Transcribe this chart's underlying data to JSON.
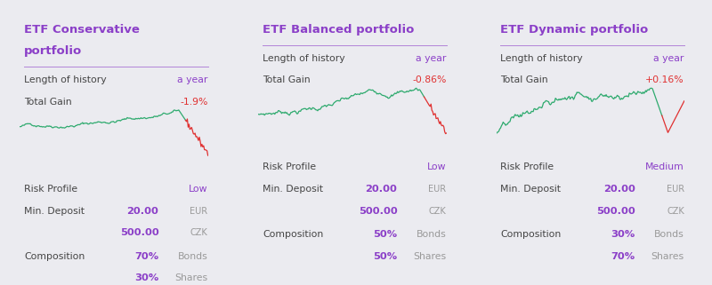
{
  "bg_color": "#ebebf0",
  "card_bg": "#ffffff",
  "purple_color": "#8b3fc8",
  "gray_color": "#999999",
  "dark_color": "#444444",
  "red_color": "#e03030",
  "green_color": "#2eaa6e",
  "cards": [
    {
      "title_line1": "ETF Conservative",
      "title_line2": "portfolio",
      "history_value": "a year",
      "gain_value": "-1.9%",
      "risk_value": "Low",
      "deposit_eur": "20.00",
      "deposit_czk": "500.00",
      "comp1_pct": "70%",
      "comp1_name": "Bonds",
      "comp2_pct": "30%",
      "comp2_name": "Shares",
      "chart_type": "conservative"
    },
    {
      "title_line1": "ETF Balanced portfolio",
      "title_line2": "",
      "history_value": "a year",
      "gain_value": "-0.86%",
      "risk_value": "Low",
      "deposit_eur": "20.00",
      "deposit_czk": "500.00",
      "comp1_pct": "50%",
      "comp1_name": "Bonds",
      "comp2_pct": "50%",
      "comp2_name": "Shares",
      "chart_type": "balanced"
    },
    {
      "title_line1": "ETF Dynamic portfolio",
      "title_line2": "",
      "history_value": "a year",
      "gain_value": "+0.16%",
      "risk_value": "Medium",
      "deposit_eur": "20.00",
      "deposit_czk": "500.00",
      "comp1_pct": "30%",
      "comp1_name": "Bonds",
      "comp2_pct": "70%",
      "comp2_name": "Shares",
      "chart_type": "dynamic"
    }
  ]
}
